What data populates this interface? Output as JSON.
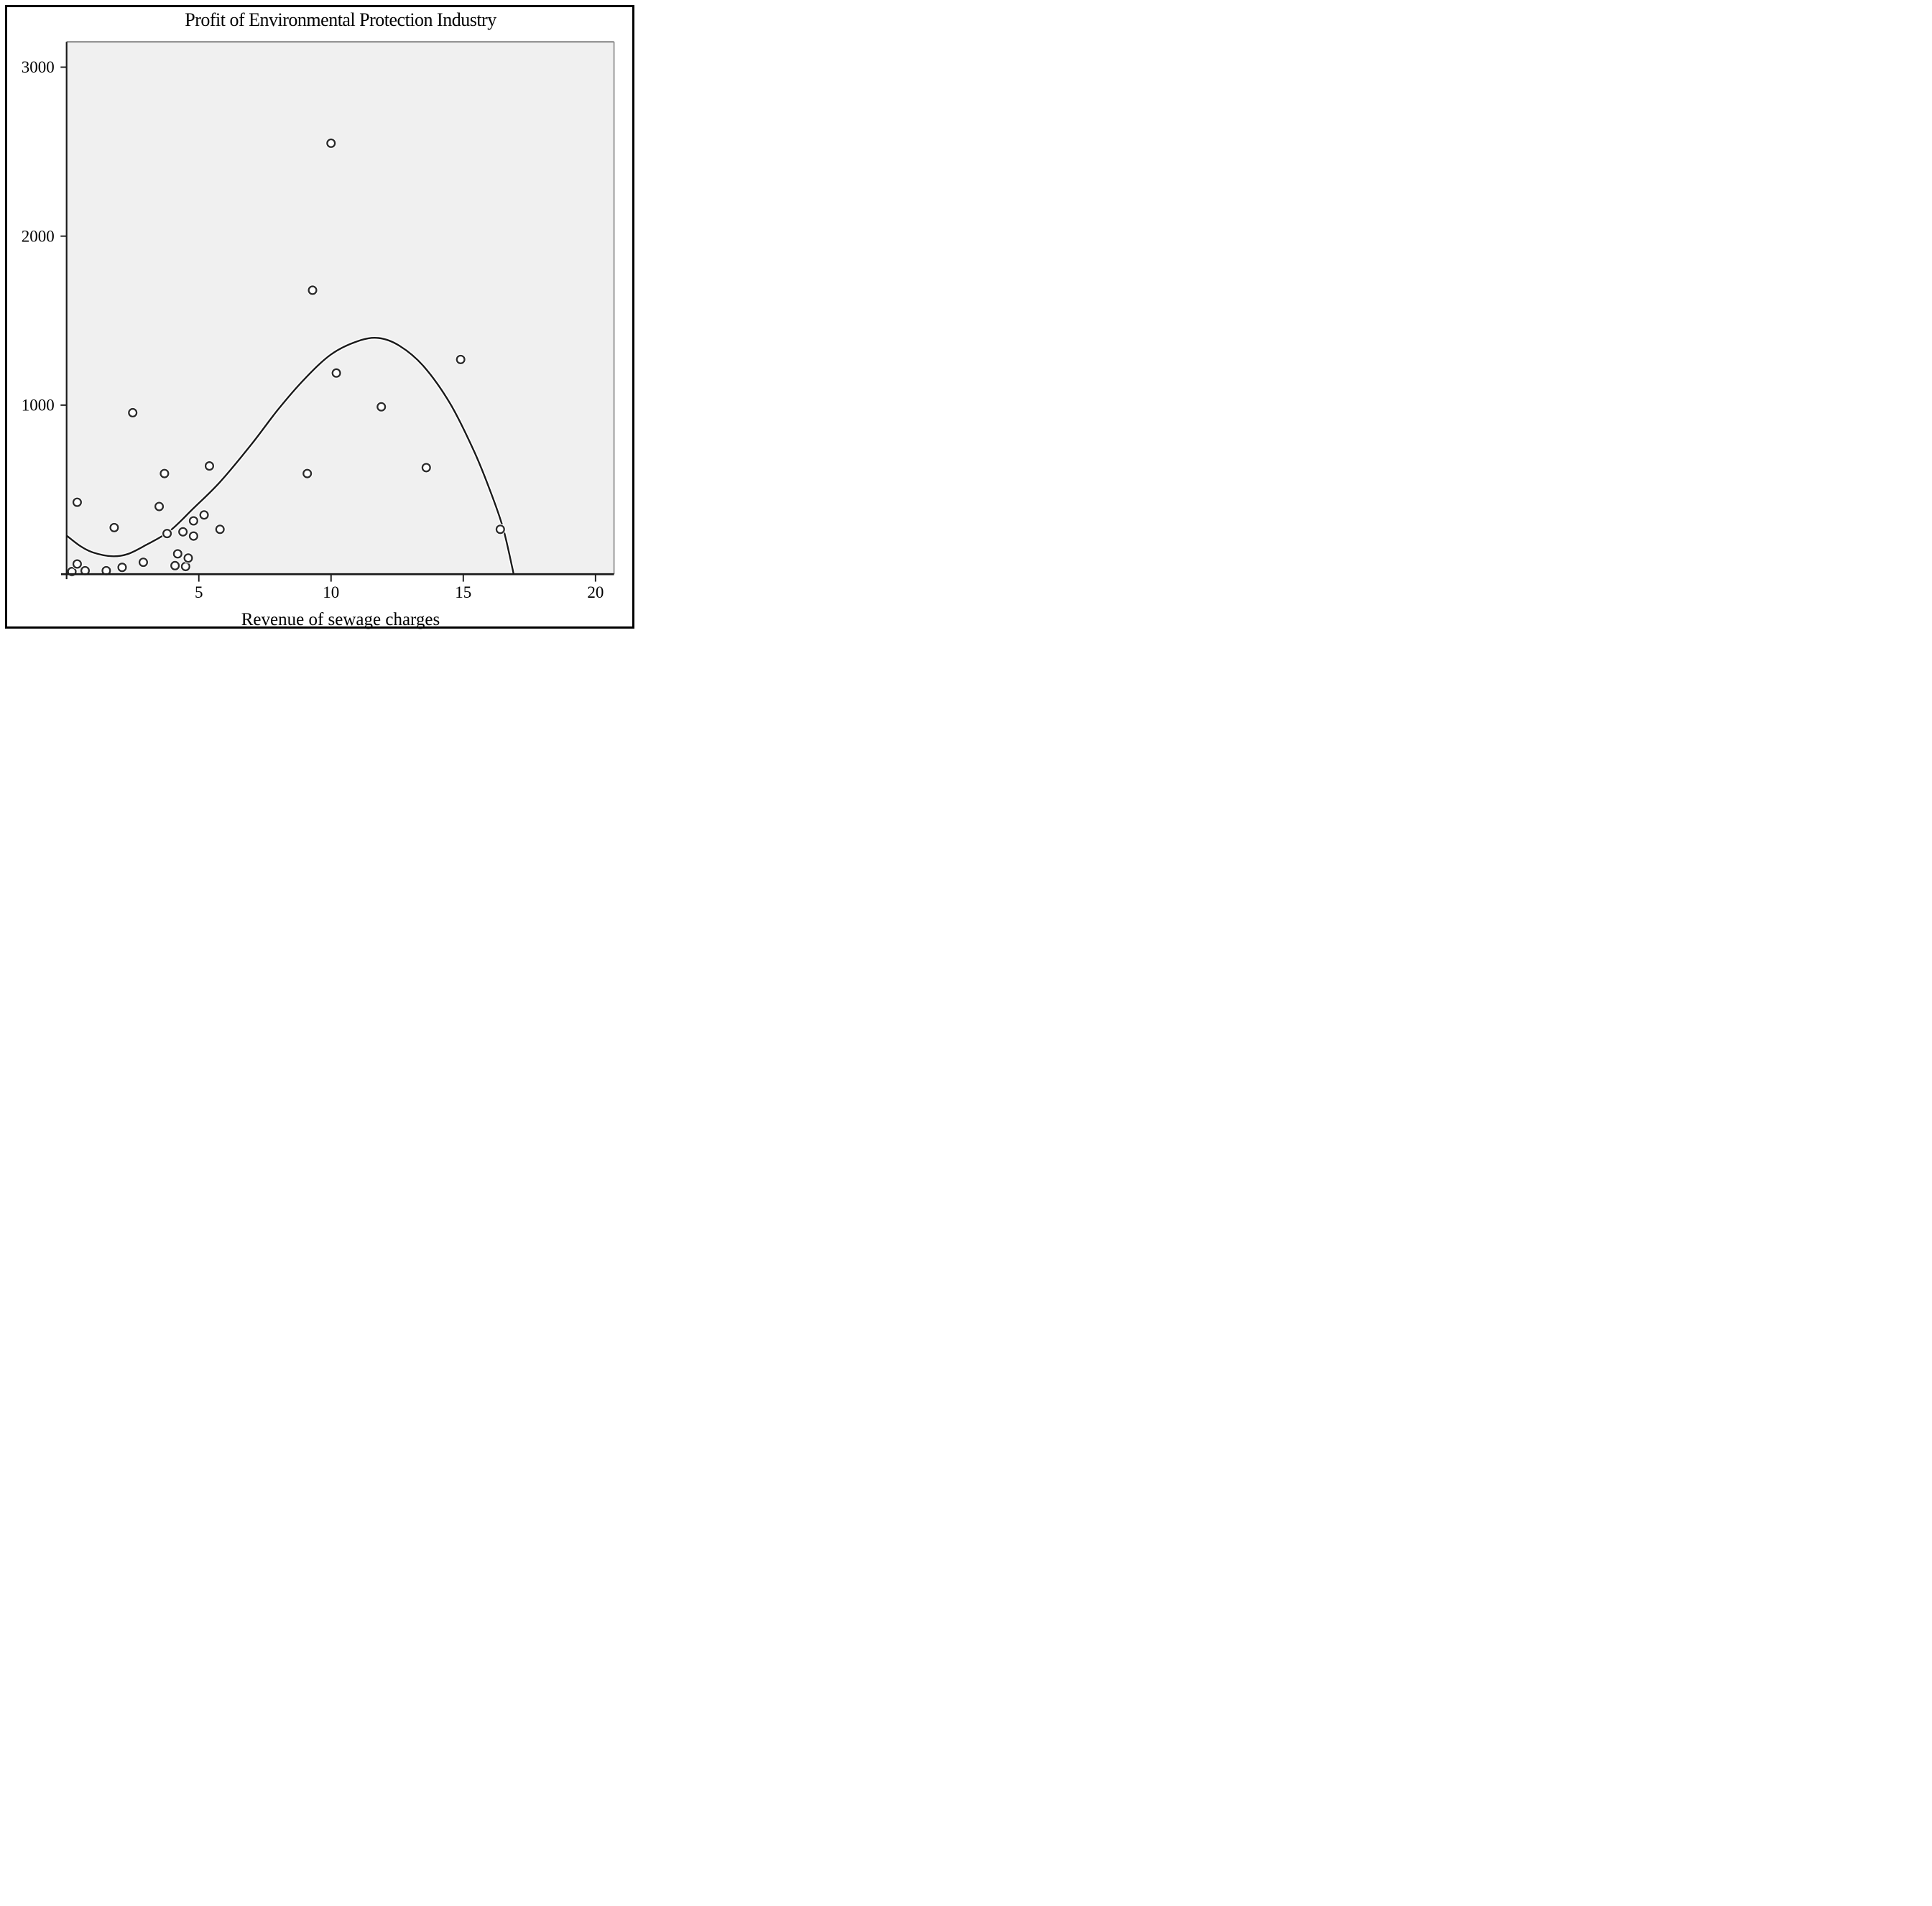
{
  "chart_data": {
    "type": "scatter",
    "title": "Profit of Environmental Protection Industry",
    "xlabel": "Revenue of sewage charges",
    "ylabel": "",
    "xlim": [
      0,
      20.7
    ],
    "ylim": [
      0,
      3150
    ],
    "x_ticks": [
      5,
      10,
      15,
      20
    ],
    "y_ticks": [
      1000,
      2000,
      3000
    ],
    "grid": false,
    "legend": null,
    "colors": {
      "plot_bg": "#f0f0f0",
      "axis": "#1a1a1a",
      "axis_shadow": "#999999",
      "border_top_right": "#828282",
      "marker_stroke": "#2b2b2b",
      "marker_fill": "#ffffff",
      "curve": "#1a1a1a",
      "halo": "#ffffff"
    },
    "points": [
      {
        "x": 0.2,
        "y": 15
      },
      {
        "x": 0.4,
        "y": 60
      },
      {
        "x": 0.4,
        "y": 425
      },
      {
        "x": 0.7,
        "y": 20
      },
      {
        "x": 1.5,
        "y": 20
      },
      {
        "x": 1.8,
        "y": 275
      },
      {
        "x": 2.1,
        "y": 40
      },
      {
        "x": 2.5,
        "y": 955
      },
      {
        "x": 2.9,
        "y": 70
      },
      {
        "x": 3.5,
        "y": 400
      },
      {
        "x": 3.7,
        "y": 595
      },
      {
        "x": 3.8,
        "y": 240
      },
      {
        "x": 4.1,
        "y": 50
      },
      {
        "x": 4.2,
        "y": 120
      },
      {
        "x": 4.4,
        "y": 250
      },
      {
        "x": 4.5,
        "y": 45
      },
      {
        "x": 4.6,
        "y": 95
      },
      {
        "x": 4.8,
        "y": 315
      },
      {
        "x": 4.8,
        "y": 225
      },
      {
        "x": 5.2,
        "y": 350
      },
      {
        "x": 5.4,
        "y": 640
      },
      {
        "x": 5.8,
        "y": 265
      },
      {
        "x": 9.1,
        "y": 595
      },
      {
        "x": 9.3,
        "y": 1680
      },
      {
        "x": 10.0,
        "y": 2550
      },
      {
        "x": 10.2,
        "y": 1190
      },
      {
        "x": 11.9,
        "y": 990
      },
      {
        "x": 13.6,
        "y": 630
      },
      {
        "x": 14.9,
        "y": 1270
      },
      {
        "x": 16.4,
        "y": 265
      }
    ],
    "fit_curve": {
      "type": "cubic-regression",
      "points": [
        {
          "x": 0.0,
          "y": 228
        },
        {
          "x": 0.5,
          "y": 168
        },
        {
          "x": 1.0,
          "y": 128
        },
        {
          "x": 1.7,
          "y": 106
        },
        {
          "x": 2.3,
          "y": 118
        },
        {
          "x": 3.0,
          "y": 172
        },
        {
          "x": 3.9,
          "y": 255
        },
        {
          "x": 4.8,
          "y": 390
        },
        {
          "x": 5.8,
          "y": 545
        },
        {
          "x": 7.0,
          "y": 770
        },
        {
          "x": 8.0,
          "y": 975
        },
        {
          "x": 9.0,
          "y": 1155
        },
        {
          "x": 10.0,
          "y": 1300
        },
        {
          "x": 11.0,
          "y": 1378
        },
        {
          "x": 11.8,
          "y": 1397
        },
        {
          "x": 12.6,
          "y": 1350
        },
        {
          "x": 13.5,
          "y": 1230
        },
        {
          "x": 14.5,
          "y": 1010
        },
        {
          "x": 15.4,
          "y": 730
        },
        {
          "x": 16.0,
          "y": 500
        },
        {
          "x": 16.5,
          "y": 275
        },
        {
          "x": 16.85,
          "y": 40
        },
        {
          "x": 16.95,
          "y": -40
        }
      ]
    }
  }
}
